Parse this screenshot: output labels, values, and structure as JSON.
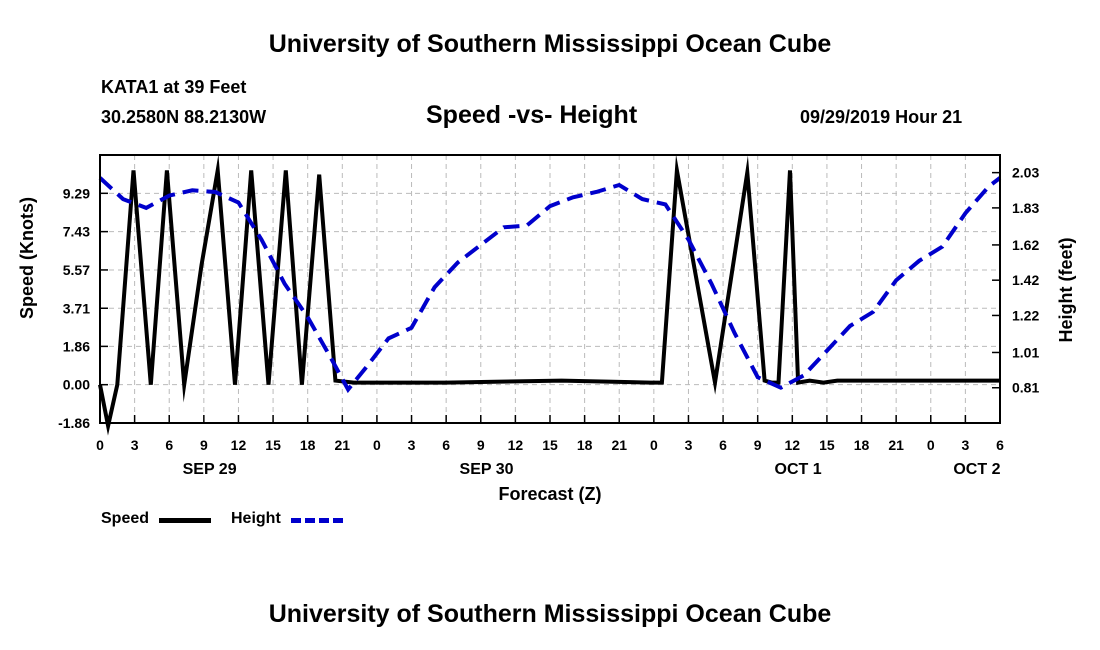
{
  "header": {
    "title": "University of Southern Mississippi Ocean Cube",
    "station": "KATA1 at 39 Feet",
    "coordinates": "30.2580N 88.2130W",
    "chart_title": "Speed -vs- Height",
    "datetime": "09/29/2019 Hour 21"
  },
  "footer": {
    "title": "University of Southern Mississippi Ocean Cube"
  },
  "legend": {
    "speed_label": "Speed",
    "height_label": "Height"
  },
  "colors": {
    "speed": "#000000",
    "height": "#0000cc",
    "grid": "#bbbbbb"
  },
  "chart_data": {
    "type": "line",
    "title": "Speed -vs- Height",
    "xlabel": "Forecast (Z)",
    "ylabel": "Speed (Knots)",
    "y2label": "Height (feet)",
    "x_range_hours": [
      0,
      78
    ],
    "ylim": [
      -1.86,
      11.15
    ],
    "y2lim": [
      0.61,
      2.13
    ],
    "y_ticks": [
      "-1.86",
      "0.00",
      "1.86",
      "3.71",
      "5.57",
      "7.43",
      "9.29"
    ],
    "y2_ticks": [
      "0.81",
      "1.01",
      "1.22",
      "1.42",
      "1.62",
      "1.83",
      "2.03"
    ],
    "x_ticks": [
      {
        "h": 0,
        "label": "0"
      },
      {
        "h": 3,
        "label": "3"
      },
      {
        "h": 6,
        "label": "6"
      },
      {
        "h": 9,
        "label": "9"
      },
      {
        "h": 12,
        "label": "12"
      },
      {
        "h": 15,
        "label": "15"
      },
      {
        "h": 18,
        "label": "18"
      },
      {
        "h": 21,
        "label": "21"
      },
      {
        "h": 24,
        "label": "0"
      },
      {
        "h": 27,
        "label": "3"
      },
      {
        "h": 30,
        "label": "6"
      },
      {
        "h": 33,
        "label": "9"
      },
      {
        "h": 36,
        "label": "12"
      },
      {
        "h": 39,
        "label": "15"
      },
      {
        "h": 42,
        "label": "18"
      },
      {
        "h": 45,
        "label": "21"
      },
      {
        "h": 48,
        "label": "0"
      },
      {
        "h": 51,
        "label": "3"
      },
      {
        "h": 54,
        "label": "6"
      },
      {
        "h": 57,
        "label": "9"
      },
      {
        "h": 60,
        "label": "12"
      },
      {
        "h": 63,
        "label": "15"
      },
      {
        "h": 66,
        "label": "18"
      },
      {
        "h": 69,
        "label": "21"
      },
      {
        "h": 72,
        "label": "0"
      },
      {
        "h": 75,
        "label": "3"
      },
      {
        "h": 78,
        "label": "6"
      }
    ],
    "date_labels": [
      {
        "h": 9.5,
        "label": "SEP 29"
      },
      {
        "h": 33.5,
        "label": "SEP 30"
      },
      {
        "h": 60.5,
        "label": "OCT 1"
      },
      {
        "h": 76,
        "label": "OCT 2"
      }
    ],
    "series": [
      {
        "name": "Speed",
        "axis": "left",
        "style": "solid",
        "x": [
          0,
          0.7,
          1.5,
          2.9,
          4.4,
          5.8,
          7.3,
          8.8,
          10.2,
          11.7,
          13.1,
          14.6,
          16.1,
          17.5,
          19.0,
          20.4,
          22,
          30,
          40,
          47.7,
          48.7,
          50.0,
          53.3,
          56.1,
          57.6,
          58.2,
          58.8,
          59.8,
          60.5,
          61.5,
          62.7,
          63.9,
          64.7,
          65.6,
          66.7,
          67.8,
          68.9,
          69.8,
          70.8,
          71.6,
          72.7,
          75.6,
          76.6,
          77.7,
          78.0
        ],
        "values": [
          0.0,
          -2.0,
          0.0,
          10.4,
          0.0,
          10.4,
          0.0,
          5.8,
          10.4,
          0.0,
          10.4,
          0.0,
          10.4,
          0.0,
          10.2,
          0.2,
          0.1,
          0.1,
          0.2,
          0.1,
          0.1,
          10.4,
          0.1,
          10.3,
          0.2,
          0.1,
          0.1,
          10.4,
          0.1,
          0.2,
          0.1,
          0.2,
          0.2,
          0.2,
          0.2,
          0.2,
          0.2,
          0.2,
          0.2,
          0.2,
          0.2,
          0.2,
          0.2,
          0.2,
          0.2
        ]
      },
      {
        "name": "Height",
        "axis": "right",
        "style": "dashed",
        "x": [
          0,
          2,
          4,
          6,
          8,
          10,
          12,
          14,
          16,
          18,
          20,
          21.5,
          23,
          25,
          27,
          29,
          31,
          33,
          35,
          37,
          39,
          41,
          43,
          45,
          47,
          49,
          51,
          53,
          55,
          57,
          59,
          61,
          63,
          65,
          67,
          69,
          71,
          73,
          75,
          77,
          78
        ],
        "values": [
          2.0,
          1.88,
          1.83,
          1.9,
          1.93,
          1.92,
          1.86,
          1.65,
          1.4,
          1.21,
          0.98,
          0.8,
          0.92,
          1.09,
          1.15,
          1.38,
          1.52,
          1.62,
          1.72,
          1.73,
          1.84,
          1.89,
          1.92,
          1.96,
          1.88,
          1.85,
          1.65,
          1.4,
          1.12,
          0.87,
          0.81,
          0.88,
          1.02,
          1.16,
          1.24,
          1.42,
          1.53,
          1.61,
          1.8,
          1.95,
          2.0
        ]
      }
    ]
  }
}
